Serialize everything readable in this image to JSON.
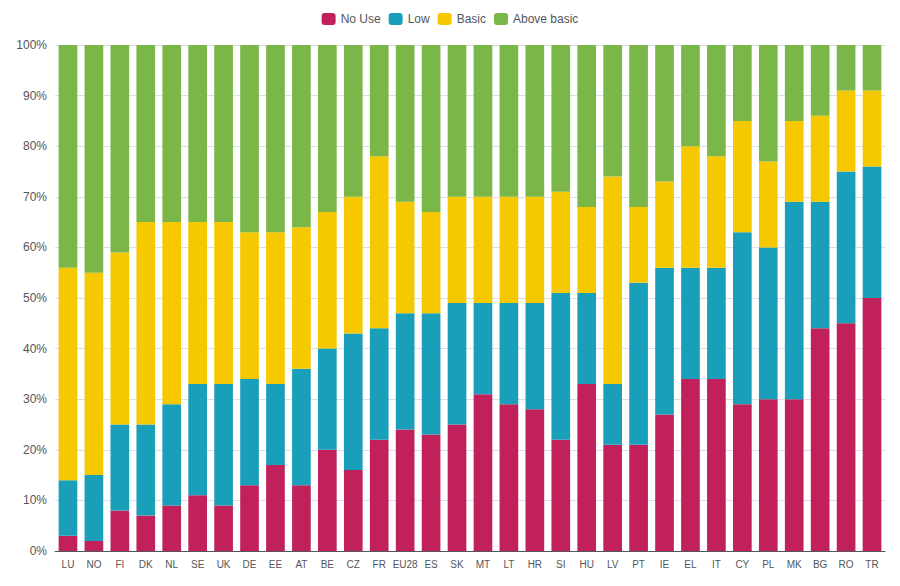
{
  "chart_data": {
    "type": "bar",
    "stacked": true,
    "categories": [
      "LU",
      "NO",
      "FI",
      "DK",
      "NL",
      "SE",
      "UK",
      "DE",
      "EE",
      "AT",
      "BE",
      "CZ",
      "FR",
      "EU28",
      "ES",
      "SK",
      "MT",
      "LT",
      "HR",
      "SI",
      "HU",
      "LV",
      "PT",
      "IE",
      "EL",
      "IT",
      "CY",
      "PL",
      "MK",
      "BG",
      "RO",
      "TR"
    ],
    "series": [
      {
        "name": "No Use",
        "color": "#c0215a",
        "values": [
          3,
          2,
          8,
          7,
          9,
          11,
          9,
          13,
          17,
          13,
          20,
          16,
          22,
          24,
          23,
          25,
          31,
          29,
          28,
          22,
          33,
          21,
          21,
          27,
          34,
          34,
          29,
          30,
          30,
          44,
          45,
          50
        ]
      },
      {
        "name": "Low",
        "color": "#1a9fba",
        "values": [
          11,
          13,
          17,
          18,
          20,
          22,
          24,
          21,
          16,
          23,
          20,
          27,
          22,
          23,
          24,
          24,
          18,
          20,
          21,
          29,
          18,
          12,
          32,
          29,
          22,
          22,
          34,
          30,
          39,
          25,
          30,
          26
        ]
      },
      {
        "name": "Basic",
        "color": "#f5c800",
        "values": [
          42,
          40,
          34,
          40,
          36,
          32,
          32,
          29,
          30,
          28,
          27,
          27,
          34,
          22,
          20,
          21,
          21,
          21,
          21,
          20,
          17,
          41,
          15,
          17,
          24,
          22,
          22,
          17,
          16,
          17,
          16,
          15
        ]
      },
      {
        "name": "Above basic",
        "color": "#7ab648",
        "values": [
          44,
          45,
          41,
          35,
          35,
          35,
          35,
          37,
          37,
          36,
          33,
          30,
          22,
          31,
          33,
          30,
          30,
          30,
          30,
          29,
          32,
          26,
          32,
          27,
          20,
          22,
          15,
          23,
          15,
          14,
          9,
          9
        ]
      }
    ],
    "ylim": [
      0,
      100
    ],
    "yticks": [
      {
        "value": 0,
        "label": "0%"
      },
      {
        "value": 10,
        "label": "10%"
      },
      {
        "value": 20,
        "label": "20%"
      },
      {
        "value": 30,
        "label": "30%"
      },
      {
        "value": 40,
        "label": "40%"
      },
      {
        "value": 50,
        "label": "50%"
      },
      {
        "value": 60,
        "label": "60%"
      },
      {
        "value": 70,
        "label": "70%"
      },
      {
        "value": 80,
        "label": "80%"
      },
      {
        "value": 90,
        "label": "90%"
      },
      {
        "value": 100,
        "label": "100%"
      }
    ],
    "grid": true,
    "legend": "top"
  }
}
